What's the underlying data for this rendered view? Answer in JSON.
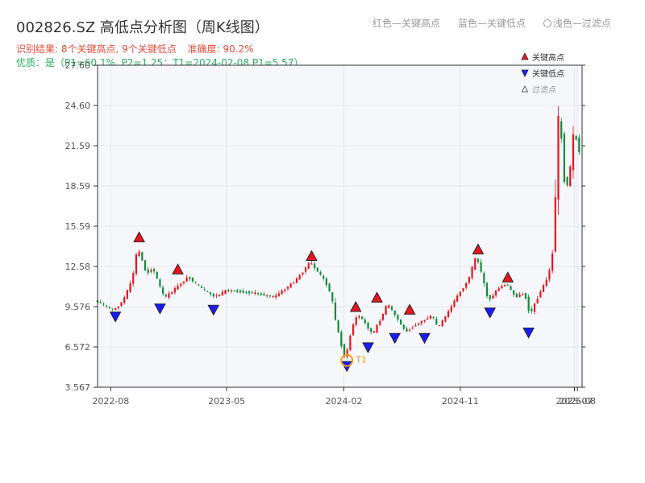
{
  "header": {
    "title": "002826.SZ 高低点分析图（周K线图）",
    "legend_top": {
      "red": "红色—关键高点",
      "blue": "蓝色—关键低点",
      "light": "浅色—过滤点"
    },
    "result": "识别结果: 8个关键高点, 9个关键低点",
    "accuracy": "准确度: 90.2%",
    "quality": "优质：是（P1=60.1%, P2=1.25：T1=2024-02-08 P1=5.57）"
  },
  "colors": {
    "up": "#e8141e",
    "down": "#138a3a",
    "high_marker": "#e8141e",
    "low_marker": "#1a1aff",
    "t1": "#f39c12",
    "plot_bg": "#f5f7fa",
    "grid": "#e4e7ec"
  },
  "chart_data": {
    "type": "candlestick",
    "title": "002826.SZ 高低点分析图（周K线图）",
    "xlabel": "",
    "ylabel": "",
    "ylim": [
      3.567,
      27.6
    ],
    "yticks": [
      "3.567",
      "6.572",
      "9.576",
      "12.58",
      "15.59",
      "18.59",
      "21.59",
      "24.60",
      "27.60"
    ],
    "xlim": [
      "2022-07-01",
      "2025-08-15"
    ],
    "xticks": [
      {
        "date": "2022-08-01",
        "label": "2022-08"
      },
      {
        "date": "2023-05-01",
        "label": "2023-05"
      },
      {
        "date": "2024-02-01",
        "label": "2024-02"
      },
      {
        "date": "2024-11-01",
        "label": "2024-11"
      },
      {
        "date": "2025-07-28",
        "label": "2025-07"
      },
      {
        "date": "2025-08-04",
        "label": "2025-08"
      }
    ],
    "grid": true,
    "price_anchors": [
      [
        "2022-07-01",
        10.0
      ],
      [
        "2022-08-12",
        9.3
      ],
      [
        "2022-09-02",
        10.0
      ],
      [
        "2022-09-23",
        11.5
      ],
      [
        "2022-10-07",
        14.0
      ],
      [
        "2022-10-28",
        12.0
      ],
      [
        "2022-11-11",
        12.5
      ],
      [
        "2022-12-09",
        10.2
      ],
      [
        "2023-01-06",
        11.0
      ],
      [
        "2023-02-03",
        11.8
      ],
      [
        "2023-03-03",
        11.0
      ],
      [
        "2023-04-07",
        10.3
      ],
      [
        "2023-05-05",
        10.8
      ],
      [
        "2023-07-07",
        10.6
      ],
      [
        "2023-08-25",
        10.3
      ],
      [
        "2023-10-13",
        11.5
      ],
      [
        "2023-11-17",
        12.9
      ],
      [
        "2023-12-22",
        11.5
      ],
      [
        "2024-01-05",
        10.5
      ],
      [
        "2024-01-19",
        8.0
      ],
      [
        "2024-02-08",
        5.6
      ],
      [
        "2024-02-23",
        8.0
      ],
      [
        "2024-03-08",
        9.0
      ],
      [
        "2024-03-22",
        8.5
      ],
      [
        "2024-04-12",
        7.5
      ],
      [
        "2024-05-03",
        8.8
      ],
      [
        "2024-05-17",
        9.8
      ],
      [
        "2024-06-07",
        8.8
      ],
      [
        "2024-06-28",
        7.7
      ],
      [
        "2024-07-26",
        8.3
      ],
      [
        "2024-08-30",
        8.9
      ],
      [
        "2024-09-13",
        8.0
      ],
      [
        "2024-10-04",
        9.0
      ],
      [
        "2024-10-25",
        10.2
      ],
      [
        "2024-11-22",
        11.5
      ],
      [
        "2024-12-13",
        13.4
      ],
      [
        "2025-01-10",
        10.0
      ],
      [
        "2025-01-31",
        10.9
      ],
      [
        "2025-02-21",
        11.3
      ],
      [
        "2025-03-14",
        10.3
      ],
      [
        "2025-04-04",
        10.6
      ],
      [
        "2025-04-18",
        9.0
      ],
      [
        "2025-05-09",
        10.5
      ],
      [
        "2025-05-30",
        11.8
      ],
      [
        "2025-06-13",
        14.0
      ],
      [
        "2025-06-20",
        22.0
      ],
      [
        "2025-06-27",
        24.8
      ],
      [
        "2025-07-04",
        19.5
      ],
      [
        "2025-07-18",
        18.4
      ],
      [
        "2025-07-25",
        21.5
      ],
      [
        "2025-08-01",
        23.0
      ],
      [
        "2025-08-08",
        21.2
      ]
    ],
    "high_points": [
      {
        "date": "2022-10-07",
        "value": 14.3
      },
      {
        "date": "2023-01-06",
        "value": 11.9
      },
      {
        "date": "2023-11-17",
        "value": 12.9
      },
      {
        "date": "2024-02-29",
        "value": 9.1
      },
      {
        "date": "2024-04-19",
        "value": 9.8
      },
      {
        "date": "2024-07-05",
        "value": 8.9
      },
      {
        "date": "2024-12-13",
        "value": 13.4
      },
      {
        "date": "2025-02-21",
        "value": 11.3
      }
    ],
    "low_points": [
      {
        "date": "2022-08-12",
        "value": 9.3
      },
      {
        "date": "2022-11-25",
        "value": 9.9
      },
      {
        "date": "2023-03-31",
        "value": 9.8
      },
      {
        "date": "2024-02-08",
        "value": 5.6
      },
      {
        "date": "2024-03-29",
        "value": 7.0
      },
      {
        "date": "2024-05-31",
        "value": 7.7
      },
      {
        "date": "2024-08-09",
        "value": 7.7
      },
      {
        "date": "2025-01-10",
        "value": 9.6
      },
      {
        "date": "2025-04-11",
        "value": 8.1
      }
    ],
    "t1": {
      "date": "2024-02-08",
      "value": 5.57,
      "label": "T1"
    },
    "legend": [
      {
        "kind": "high",
        "label": "关键高点"
      },
      {
        "kind": "low",
        "label": "关键低点"
      },
      {
        "kind": "filtered",
        "label": "过滤点"
      }
    ]
  }
}
